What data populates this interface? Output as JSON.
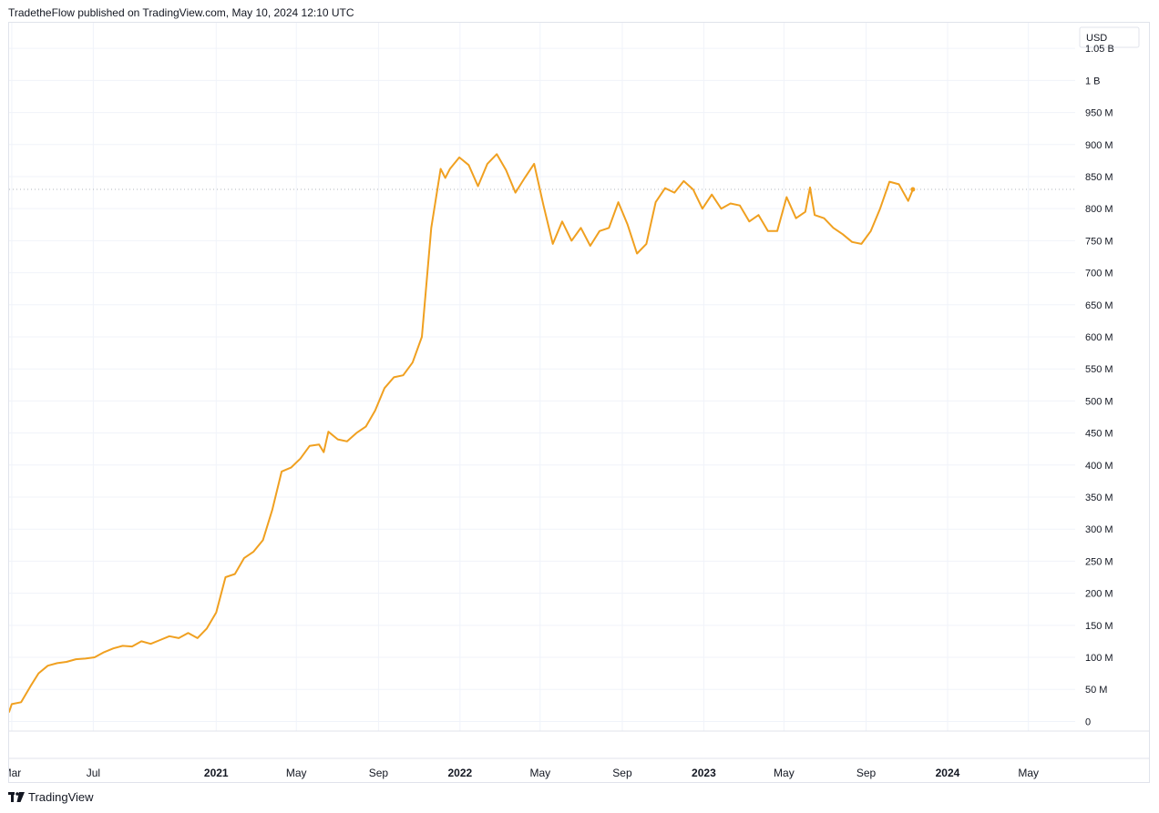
{
  "header": {
    "publisher_line": "TradetheFlow published on TradingView.com, May 10, 2024 12:10 UTC"
  },
  "footer": {
    "brand": "TradingView"
  },
  "chart_data": {
    "type": "line",
    "currency": "USD",
    "line_color": "#f0a020",
    "last_value_line_color": "#b2b5be",
    "grid": true,
    "y_ticks": [
      {
        "value": 1050000000,
        "label": "1.05 B"
      },
      {
        "value": 1000000000,
        "label": "1 B"
      },
      {
        "value": 950000000,
        "label": "950 M"
      },
      {
        "value": 900000000,
        "label": "900 M"
      },
      {
        "value": 850000000,
        "label": "850 M"
      },
      {
        "value": 800000000,
        "label": "800 M"
      },
      {
        "value": 750000000,
        "label": "750 M"
      },
      {
        "value": 700000000,
        "label": "700 M"
      },
      {
        "value": 650000000,
        "label": "650 M"
      },
      {
        "value": 600000000,
        "label": "600 M"
      },
      {
        "value": 550000000,
        "label": "550 M"
      },
      {
        "value": 500000000,
        "label": "500 M"
      },
      {
        "value": 450000000,
        "label": "450 M"
      },
      {
        "value": 400000000,
        "label": "400 M"
      },
      {
        "value": 350000000,
        "label": "350 M"
      },
      {
        "value": 300000000,
        "label": "300 M"
      },
      {
        "value": 250000000,
        "label": "250 M"
      },
      {
        "value": 200000000,
        "label": "200 M"
      },
      {
        "value": 150000000,
        "label": "150 M"
      },
      {
        "value": 100000000,
        "label": "100 M"
      },
      {
        "value": 50000000,
        "label": "50 M"
      },
      {
        "value": 0,
        "label": "0"
      }
    ],
    "x_ticks": [
      {
        "date": "2020-03-01",
        "label": "Mar",
        "bold": false
      },
      {
        "date": "2020-07-01",
        "label": "Jul",
        "bold": false
      },
      {
        "date": "2021-01-01",
        "label": "2021",
        "bold": true
      },
      {
        "date": "2021-05-01",
        "label": "May",
        "bold": false
      },
      {
        "date": "2021-09-01",
        "label": "Sep",
        "bold": false
      },
      {
        "date": "2022-01-01",
        "label": "2022",
        "bold": true
      },
      {
        "date": "2022-05-01",
        "label": "May",
        "bold": false
      },
      {
        "date": "2022-09-01",
        "label": "Sep",
        "bold": false
      },
      {
        "date": "2023-01-01",
        "label": "2023",
        "bold": true
      },
      {
        "date": "2023-05-01",
        "label": "May",
        "bold": false
      },
      {
        "date": "2023-09-01",
        "label": "Sep",
        "bold": false
      },
      {
        "date": "2024-01-01",
        "label": "2024",
        "bold": true
      },
      {
        "date": "2024-05-01",
        "label": "May",
        "bold": false
      }
    ],
    "x_range": [
      "2020-02-26",
      "2024-07-10"
    ],
    "y_range": [
      -15000000,
      1090000000
    ],
    "last_value": 830000000,
    "series": [
      {
        "points": [
          [
            "2020-02-26",
            15000000
          ],
          [
            "2020-03-01",
            27000000
          ],
          [
            "2020-03-15",
            30000000
          ],
          [
            "2020-03-29",
            55000000
          ],
          [
            "2020-04-10",
            75000000
          ],
          [
            "2020-04-24",
            87000000
          ],
          [
            "2020-05-08",
            91000000
          ],
          [
            "2020-05-22",
            93000000
          ],
          [
            "2020-06-05",
            97000000
          ],
          [
            "2020-06-19",
            98000000
          ],
          [
            "2020-07-03",
            100000000
          ],
          [
            "2020-07-17",
            108000000
          ],
          [
            "2020-07-31",
            114000000
          ],
          [
            "2020-08-14",
            118000000
          ],
          [
            "2020-08-28",
            117000000
          ],
          [
            "2020-09-11",
            125000000
          ],
          [
            "2020-09-25",
            121000000
          ],
          [
            "2020-10-09",
            127000000
          ],
          [
            "2020-10-23",
            133000000
          ],
          [
            "2020-11-06",
            130000000
          ],
          [
            "2020-11-20",
            138000000
          ],
          [
            "2020-12-04",
            130000000
          ],
          [
            "2020-12-18",
            145000000
          ],
          [
            "2021-01-01",
            170000000
          ],
          [
            "2021-01-15",
            225000000
          ],
          [
            "2021-01-29",
            230000000
          ],
          [
            "2021-02-12",
            255000000
          ],
          [
            "2021-02-26",
            265000000
          ],
          [
            "2021-03-12",
            283000000
          ],
          [
            "2021-03-26",
            330000000
          ],
          [
            "2021-04-09",
            390000000
          ],
          [
            "2021-04-23",
            396000000
          ],
          [
            "2021-05-07",
            410000000
          ],
          [
            "2021-05-21",
            430000000
          ],
          [
            "2021-06-04",
            432000000
          ],
          [
            "2021-06-11",
            420000000
          ],
          [
            "2021-06-18",
            452000000
          ],
          [
            "2021-07-02",
            440000000
          ],
          [
            "2021-07-16",
            437000000
          ],
          [
            "2021-07-30",
            450000000
          ],
          [
            "2021-08-13",
            460000000
          ],
          [
            "2021-08-27",
            485000000
          ],
          [
            "2021-09-10",
            520000000
          ],
          [
            "2021-09-24",
            537000000
          ],
          [
            "2021-10-08",
            540000000
          ],
          [
            "2021-10-22",
            560000000
          ],
          [
            "2021-11-05",
            600000000
          ],
          [
            "2021-11-19",
            770000000
          ],
          [
            "2021-12-03",
            862000000
          ],
          [
            "2021-12-10",
            848000000
          ],
          [
            "2021-12-17",
            862000000
          ],
          [
            "2021-12-31",
            880000000
          ],
          [
            "2022-01-14",
            868000000
          ],
          [
            "2022-01-28",
            835000000
          ],
          [
            "2022-02-11",
            870000000
          ],
          [
            "2022-02-25",
            885000000
          ],
          [
            "2022-03-11",
            860000000
          ],
          [
            "2022-03-25",
            825000000
          ],
          [
            "2022-04-08",
            848000000
          ],
          [
            "2022-04-22",
            870000000
          ],
          [
            "2022-05-06",
            805000000
          ],
          [
            "2022-05-20",
            745000000
          ],
          [
            "2022-06-03",
            780000000
          ],
          [
            "2022-06-17",
            750000000
          ],
          [
            "2022-07-01",
            770000000
          ],
          [
            "2022-07-15",
            742000000
          ],
          [
            "2022-07-29",
            765000000
          ],
          [
            "2022-08-12",
            770000000
          ],
          [
            "2022-08-26",
            810000000
          ],
          [
            "2022-09-09",
            775000000
          ],
          [
            "2022-09-23",
            730000000
          ],
          [
            "2022-10-07",
            745000000
          ],
          [
            "2022-10-21",
            810000000
          ],
          [
            "2022-11-04",
            832000000
          ],
          [
            "2022-11-18",
            825000000
          ],
          [
            "2022-12-02",
            843000000
          ],
          [
            "2022-12-16",
            830000000
          ],
          [
            "2022-12-30",
            800000000
          ],
          [
            "2023-01-13",
            822000000
          ],
          [
            "2023-01-27",
            800000000
          ],
          [
            "2023-02-10",
            808000000
          ],
          [
            "2023-02-24",
            805000000
          ],
          [
            "2023-03-10",
            780000000
          ],
          [
            "2023-03-24",
            790000000
          ],
          [
            "2023-04-07",
            765000000
          ],
          [
            "2023-04-21",
            765000000
          ],
          [
            "2023-05-05",
            818000000
          ],
          [
            "2023-05-19",
            785000000
          ],
          [
            "2023-06-02",
            795000000
          ],
          [
            "2023-06-09",
            833000000
          ],
          [
            "2023-06-16",
            790000000
          ],
          [
            "2023-06-30",
            785000000
          ],
          [
            "2023-07-14",
            770000000
          ],
          [
            "2023-07-28",
            760000000
          ],
          [
            "2023-08-11",
            748000000
          ],
          [
            "2023-08-25",
            745000000
          ],
          [
            "2023-09-08",
            765000000
          ],
          [
            "2023-09-22",
            800000000
          ],
          [
            "2023-10-06",
            842000000
          ],
          [
            "2023-10-20",
            838000000
          ],
          [
            "2023-11-03",
            812000000
          ],
          [
            "2023-11-10",
            830000000
          ]
        ]
      }
    ]
  }
}
